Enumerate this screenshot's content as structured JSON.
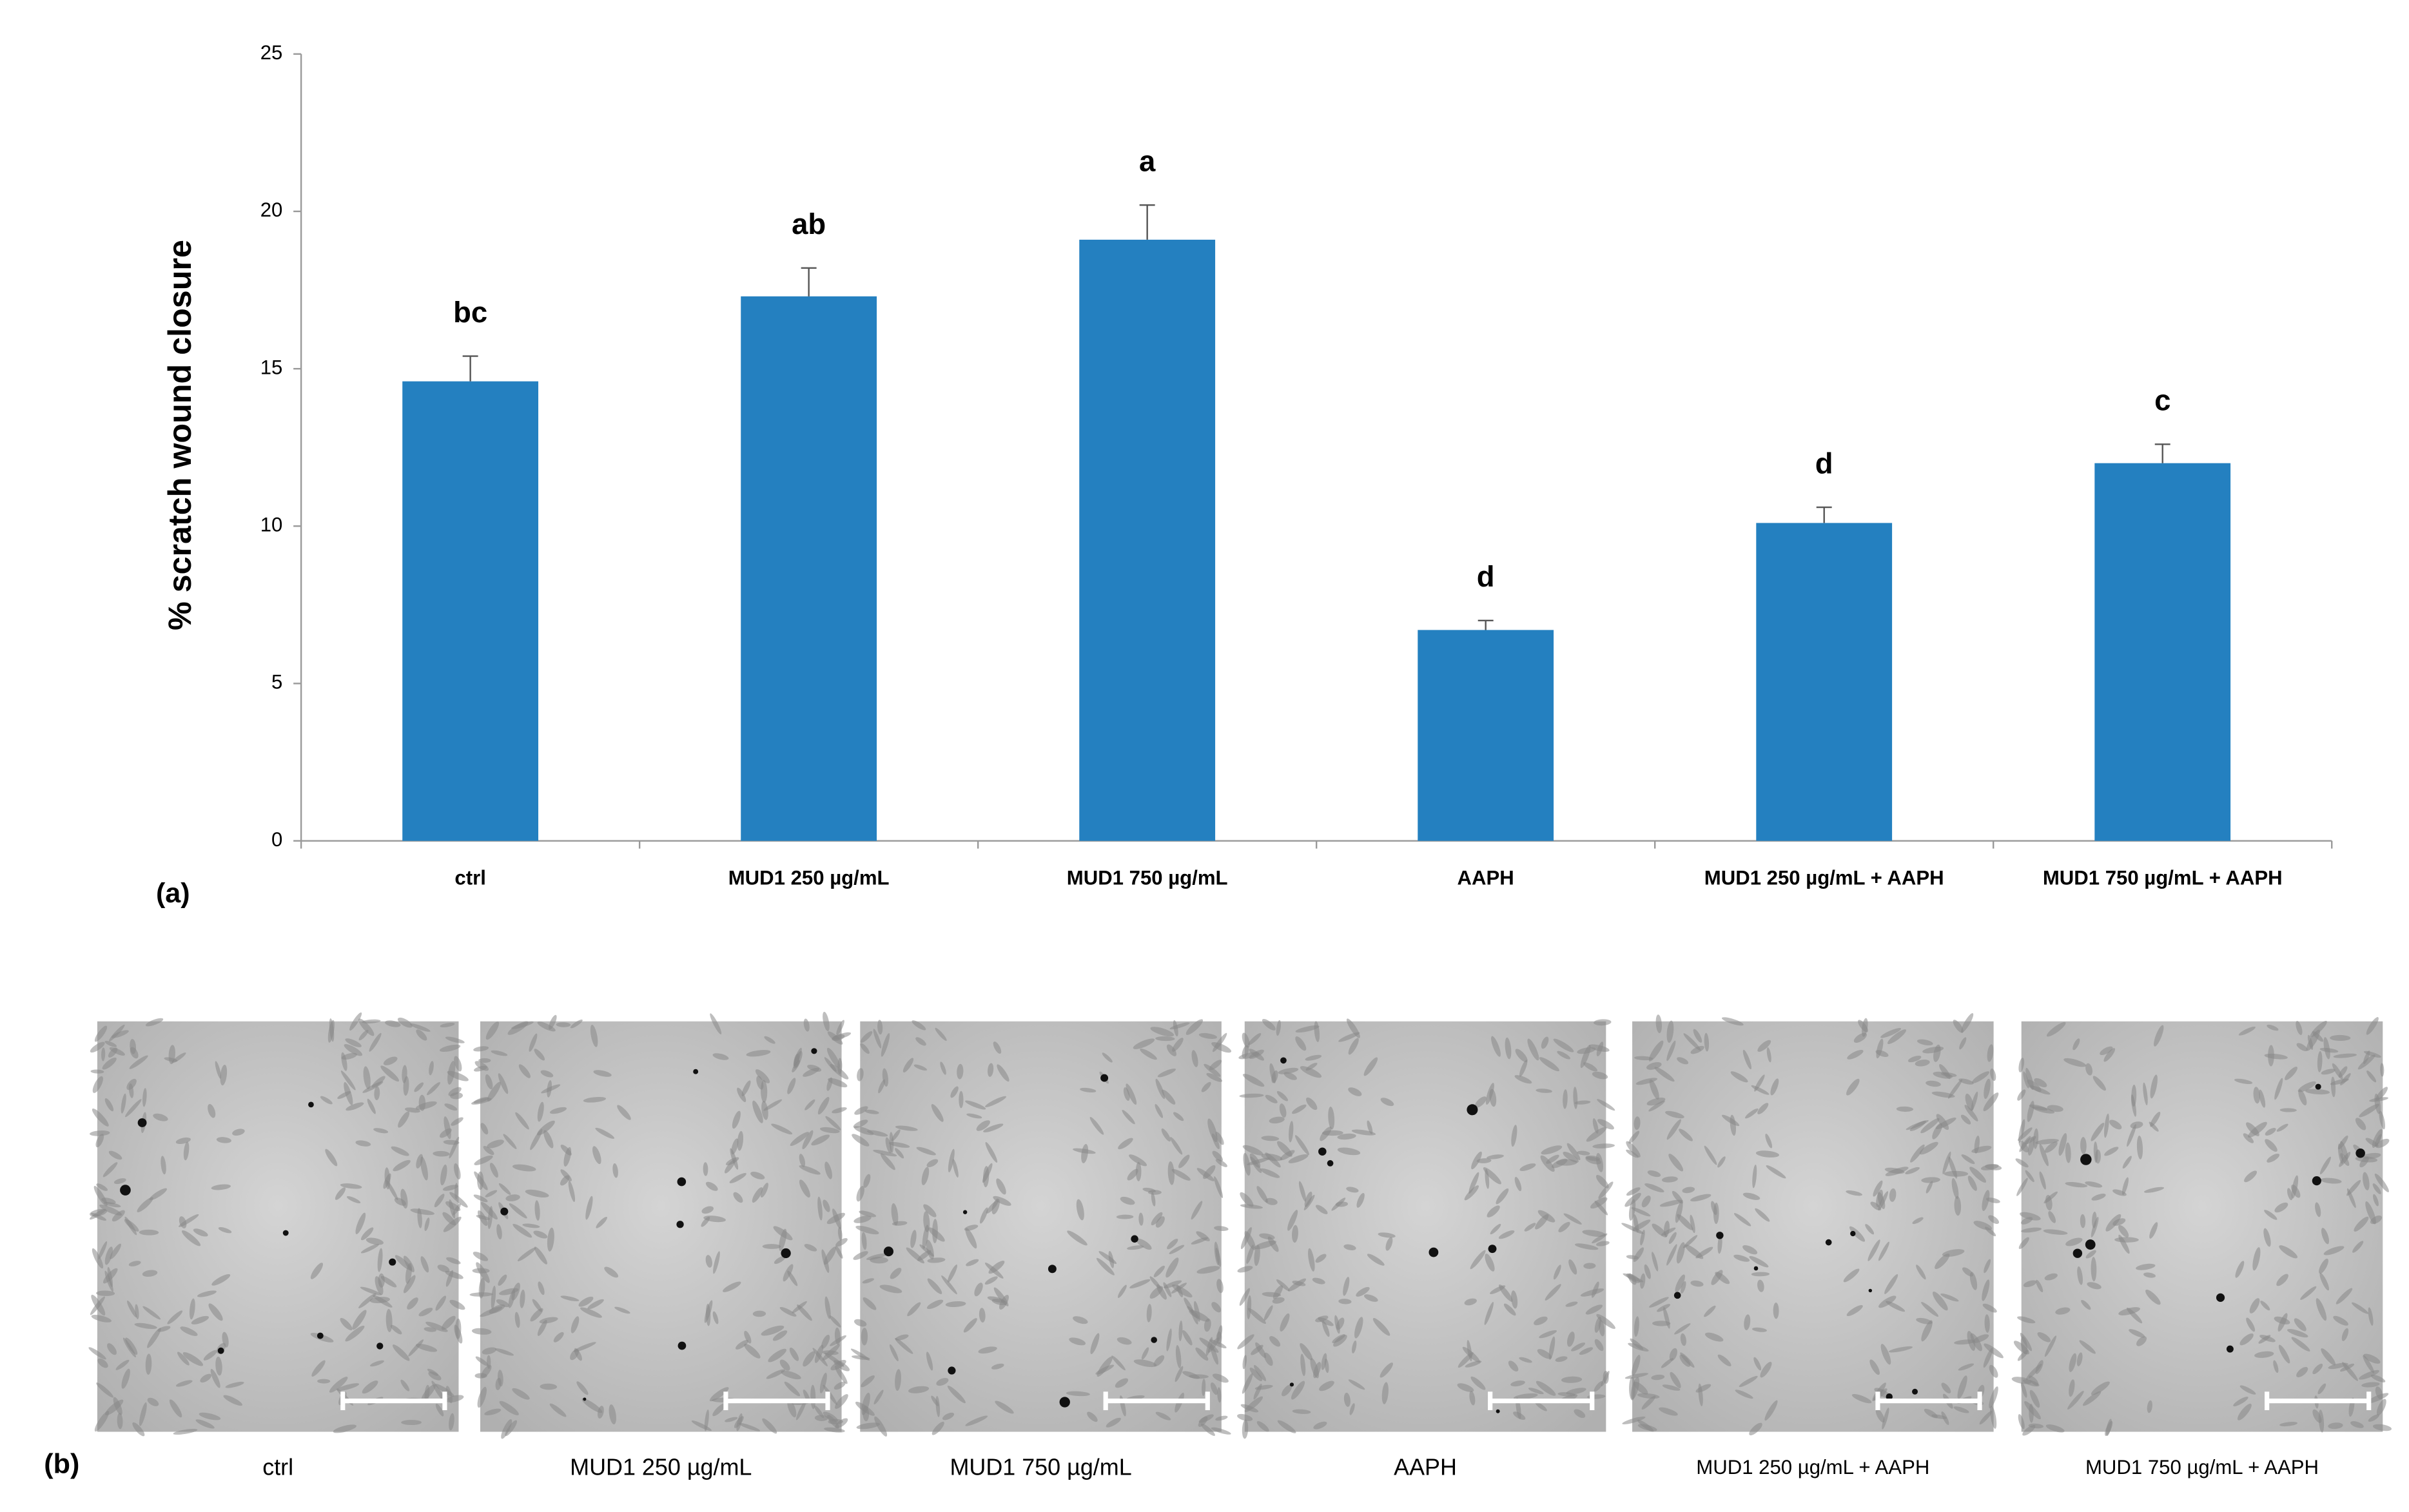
{
  "chart_data": {
    "type": "bar",
    "categories": [
      "ctrl",
      "MUD1 250 µg/mL",
      "MUD1 750 µg/mL",
      "AAPH",
      "MUD1 250 µg/mL + AAPH",
      "MUD1 750 µg/mL + AAPH"
    ],
    "values": [
      14.6,
      17.3,
      19.1,
      6.7,
      10.1,
      12.0
    ],
    "errors": [
      0.8,
      0.9,
      1.1,
      0.3,
      0.5,
      0.6
    ],
    "annotations": [
      "bc",
      "ab",
      "a",
      "d",
      "d",
      "c"
    ],
    "color": "#2480c0",
    "y_label": "% scratch wound closure",
    "panel_label": "(a)",
    "ylim": [
      0,
      25
    ],
    "yticks": [
      0,
      5,
      10,
      15,
      20,
      25
    ],
    "grid": false
  },
  "panel_b": {
    "label": "(b)",
    "captions": [
      "ctrl",
      "MUD1 250 µg/mL",
      "MUD1 750 µg/mL",
      "AAPH",
      "MUD1 250 µg/mL + AAPH",
      "MUD1 750 µg/mL + AAPH"
    ]
  }
}
